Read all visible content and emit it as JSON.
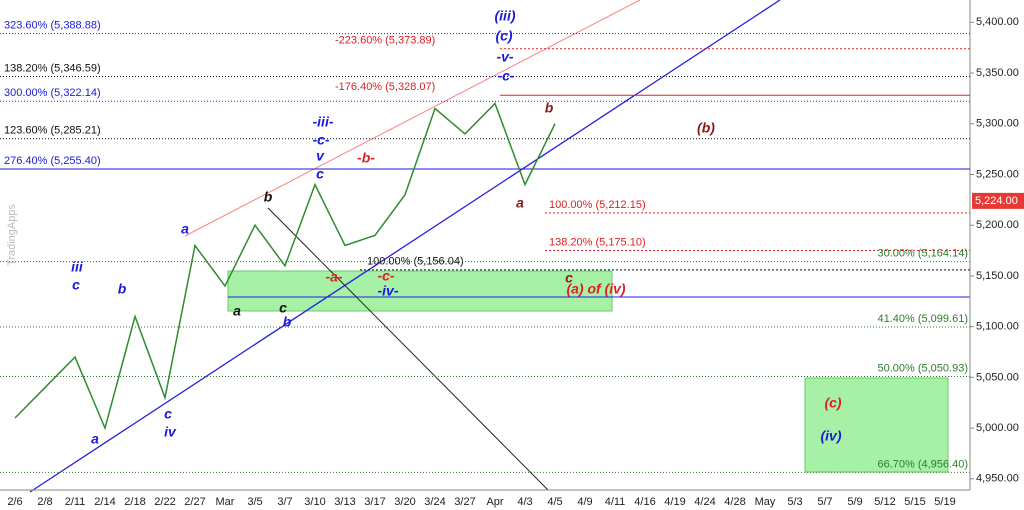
{
  "chart_data": {
    "type": "line",
    "watermark": "TradingApps",
    "categories": [
      "2/6",
      "2/8",
      "2/11",
      "2/14",
      "2/18",
      "2/22",
      "2/27",
      "Mar",
      "3/5",
      "3/7",
      "3/10",
      "3/13",
      "3/17",
      "3/20",
      "3/24",
      "3/27",
      "Apr",
      "4/3",
      "4/5",
      "4/9",
      "4/11",
      "4/16",
      "4/19",
      "4/24",
      "4/28",
      "May",
      "5/3",
      "5/7",
      "5/9",
      "5/12",
      "5/15",
      "5/19"
    ],
    "series": [
      {
        "name": "Price",
        "color": "#2e8b2e",
        "values": [
          5010,
          5040,
          5070,
          5000,
          5110,
          5030,
          5180,
          5140,
          5200,
          5160,
          5240,
          5180,
          5190,
          5230,
          5315,
          5290,
          5320,
          5240,
          5300,
          null,
          null,
          null,
          null,
          null,
          null,
          null,
          null,
          null,
          null,
          null,
          null,
          null
        ]
      }
    ],
    "ylim": [
      4939,
      5422
    ],
    "yticks": [
      {
        "value": 4950,
        "label": "4,950.00"
      },
      {
        "value": 5000,
        "label": "5,000.00"
      },
      {
        "value": 5050,
        "label": "5,050.00"
      },
      {
        "value": 5100,
        "label": "5,100.00"
      },
      {
        "value": 5150,
        "label": "5,150.00"
      },
      {
        "value": 5200,
        "label": "5,200.00"
      },
      {
        "value": 5250,
        "label": "5,250.00"
      },
      {
        "value": 5300,
        "label": "5,300.00"
      },
      {
        "value": 5350,
        "label": "5,350.00"
      },
      {
        "value": 5400,
        "label": "5,400.00"
      }
    ],
    "last_price": {
      "value": 5224,
      "label": "5,224.00"
    },
    "left_levels": [
      {
        "label": "323.60% (5,388.88)",
        "value": 5388.88,
        "color": "#1a1adb"
      },
      {
        "label": "138.20% (5,346.59)",
        "value": 5346.59,
        "color": "#111111"
      },
      {
        "label": "300.00% (5,322.14)",
        "value": 5322.14,
        "color": "#1a1adb"
      },
      {
        "label": "123.60% (5,285.21)",
        "value": 5285.21,
        "color": "#111111"
      },
      {
        "label": "276.40% (5,255.40)",
        "value": 5255.4,
        "color": "#1a1adb"
      }
    ],
    "red_levels": [
      {
        "label": "-223.60% (5,373.89)",
        "value": 5373.89,
        "color": "#e02020"
      },
      {
        "label": "-176.40% (5,328.07)",
        "value": 5328.07,
        "color": "#e02020"
      },
      {
        "label": "100.00% (5,212.15)",
        "value": 5212.15,
        "color": "#e02020"
      },
      {
        "label": "138.20% (5,175.10)",
        "value": 5175.1,
        "color": "#e02020"
      },
      {
        "label": "100.00% (5,156.04)",
        "value": 5156.04,
        "color": "#111111"
      }
    ],
    "right_levels": [
      {
        "label": "30.00% (5,164.14)",
        "value": 5164.14,
        "color": "#2e7d2e"
      },
      {
        "label": "41.40% (5,099.61)",
        "value": 5099.61,
        "color": "#2e7d2e"
      },
      {
        "label": "50.00% (5,050.93)",
        "value": 5050.93,
        "color": "#2e7d2e"
      },
      {
        "label": "66.70% (4,956.40)",
        "value": 4956.4,
        "color": "#2e7d2e"
      }
    ],
    "wave_labels": [
      "iii",
      "c",
      "a",
      "b",
      "c",
      "iv",
      "a",
      "b",
      "a",
      "c",
      "b",
      "-iii-",
      "-c-",
      "v",
      "c",
      "-b-",
      "-a-",
      "-c-",
      "-iv-",
      "(iii)",
      "(c)",
      "-v-",
      "-c-",
      "a",
      "b",
      "c",
      "(a) of (iv)",
      "(b)",
      "(c)",
      "(iv)"
    ]
  }
}
